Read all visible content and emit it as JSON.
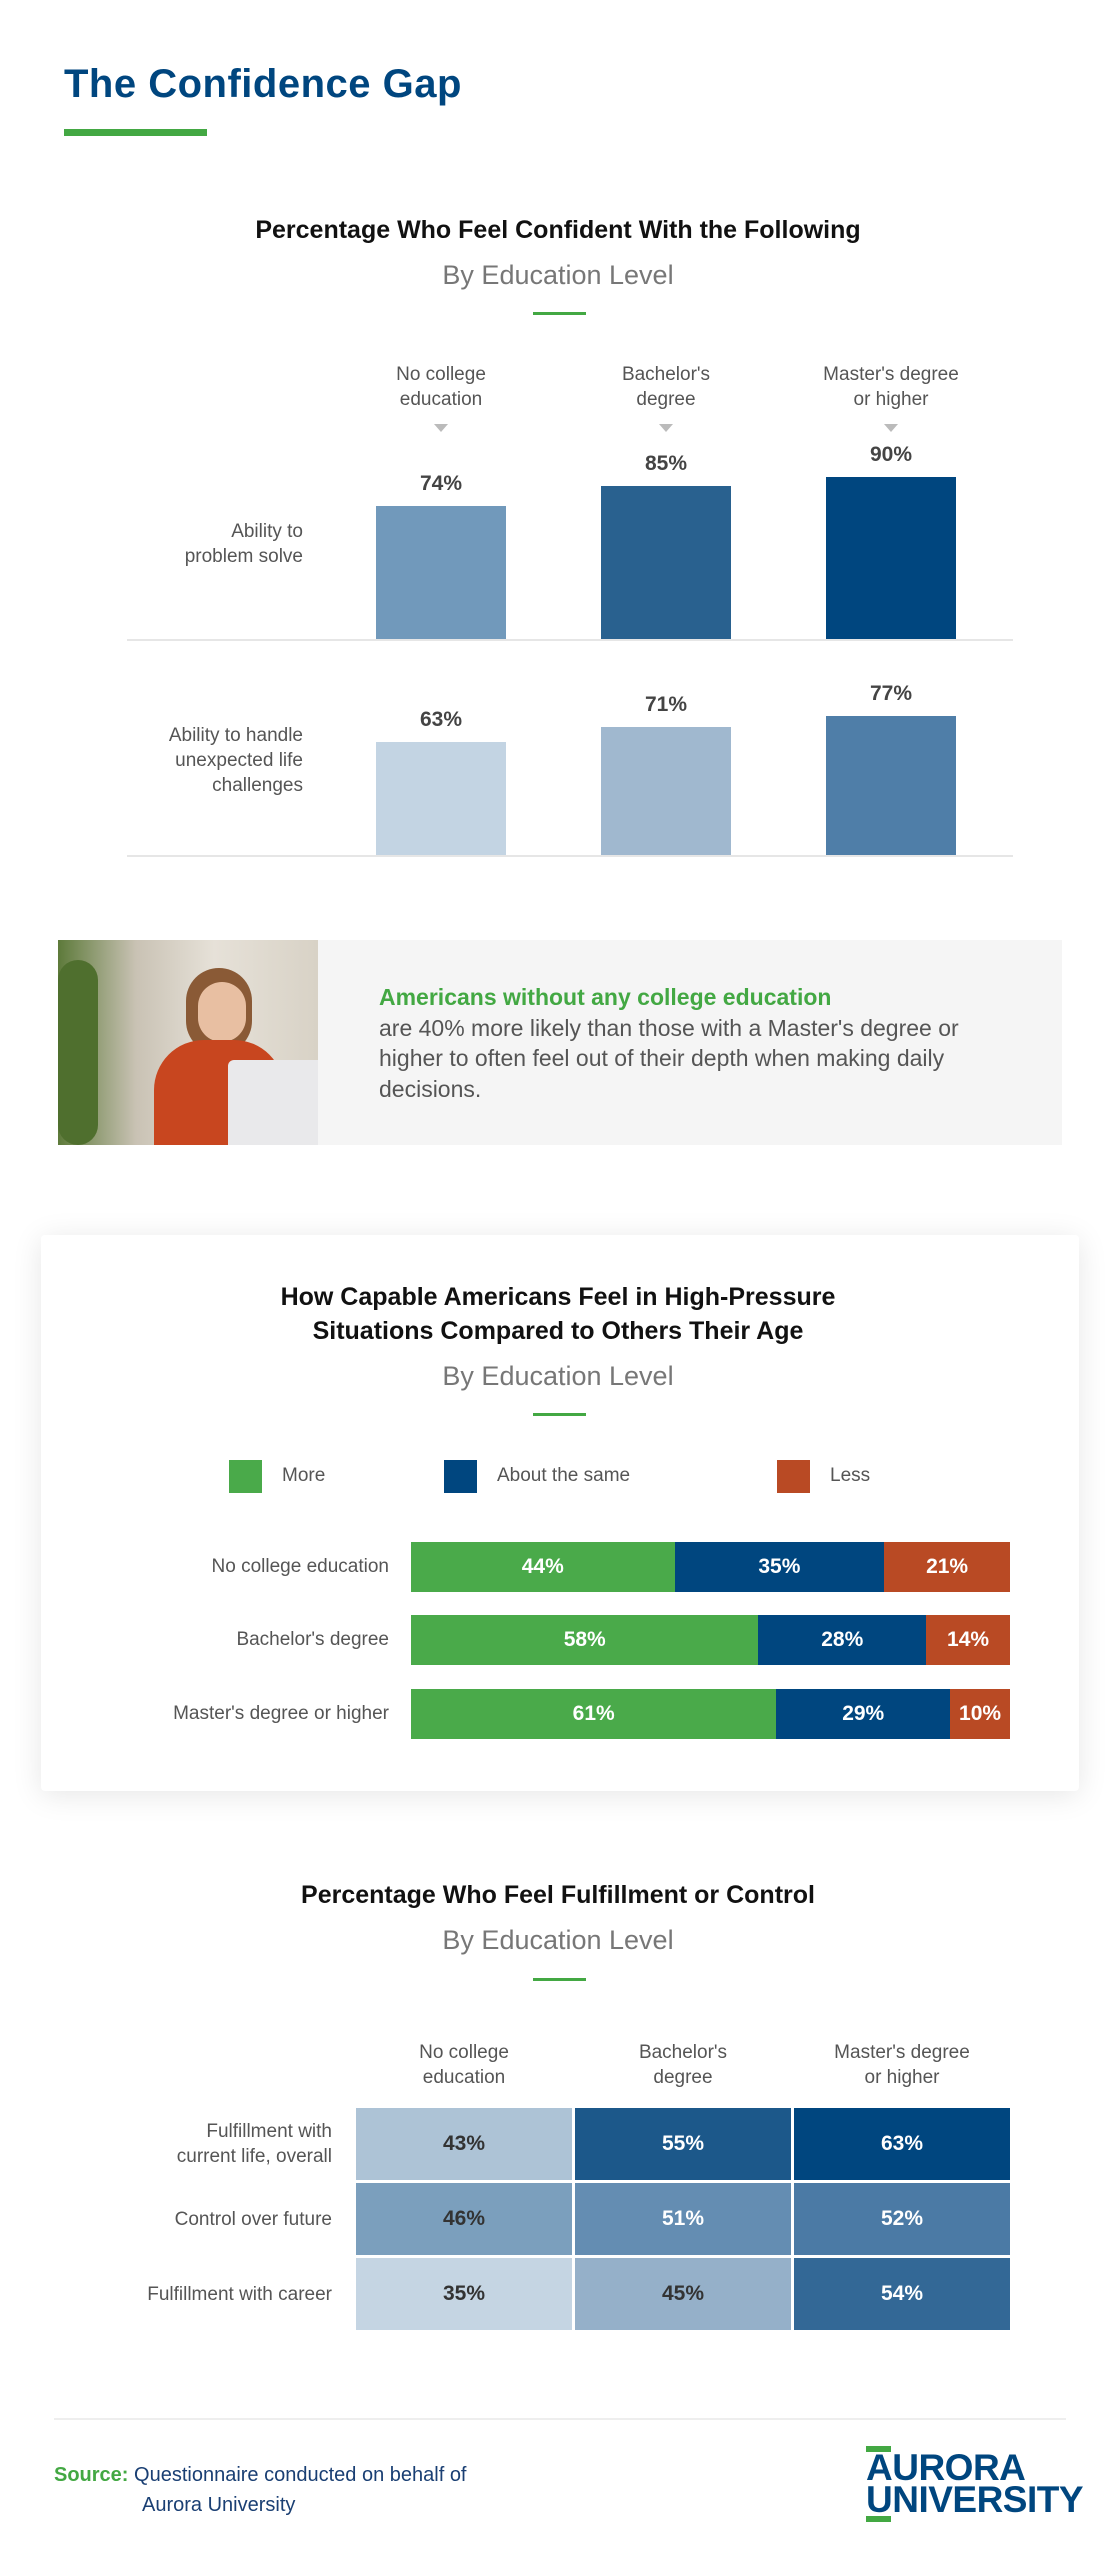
{
  "header": {
    "title": "The Confidence Gap"
  },
  "callout": {
    "highlight": "Americans without any college education",
    "body": "are 40% more likely than those with a Master's degree or higher to often feel out of their depth when making daily decisions."
  },
  "chart_data": [
    {
      "type": "bar",
      "title": "Percentage Who Feel Confident With the Following",
      "subtitle": "By Education Level",
      "categories": [
        "No college\neducation",
        "Bachelor's\ndegree",
        "Master's degree\nor higher"
      ],
      "groups": [
        {
          "label": "Ability to\nproblem solve",
          "values": [
            74,
            85,
            90
          ],
          "colors": [
            "#7199bb",
            "#29618f",
            "#00467f"
          ]
        },
        {
          "label": "Ability to handle\nunexpected life\nchallenges",
          "values": [
            63,
            71,
            77
          ],
          "colors": [
            "#c3d4e3",
            "#a0b8cf",
            "#4f7ea8"
          ]
        }
      ],
      "unit": "%",
      "ylim": [
        0,
        100
      ]
    },
    {
      "type": "bar",
      "stacked": true,
      "orientation": "horizontal",
      "title": "How Capable Americans Feel in High-Pressure\nSituations Compared to Others Their Age",
      "subtitle": "By Education Level",
      "legend": [
        {
          "label": "More",
          "color": "#4aaa4a"
        },
        {
          "label": "About the same",
          "color": "#00467f"
        },
        {
          "label": "Less",
          "color": "#b94a24"
        }
      ],
      "categories": [
        "No college education",
        "Bachelor's degree",
        "Master's degree or higher"
      ],
      "series": [
        {
          "name": "More",
          "values": [
            44,
            58,
            61
          ]
        },
        {
          "name": "About the same",
          "values": [
            35,
            28,
            29
          ]
        },
        {
          "name": "Less",
          "values": [
            21,
            14,
            10
          ]
        }
      ],
      "unit": "%"
    },
    {
      "type": "heatmap",
      "title": "Percentage Who Feel Fulfillment or Control",
      "subtitle": "By Education Level",
      "columns": [
        "No college\neducation",
        "Bachelor's\ndegree",
        "Master's degree\nor higher"
      ],
      "rows": [
        {
          "label": "Fulfillment with\ncurrent life, overall",
          "values": [
            43,
            55,
            63
          ],
          "colors": [
            "#adc3d6",
            "#1c588a",
            "#00467f"
          ]
        },
        {
          "label": "Control over future",
          "values": [
            46,
            51,
            52
          ],
          "colors": [
            "#7b9fbd",
            "#648db2",
            "#4b7aa5"
          ]
        },
        {
          "label": "Fulfillment with career",
          "values": [
            35,
            45,
            54
          ],
          "colors": [
            "#c5d5e3",
            "#95b0c9",
            "#336896"
          ]
        }
      ],
      "unit": "%"
    }
  ],
  "footer": {
    "source_label": "Source:",
    "source_text": "Questionnaire conducted on behalf of",
    "source_text2": "Aurora University",
    "logo_line1": "AURORA",
    "logo_line2": "UNIVERSITY"
  }
}
